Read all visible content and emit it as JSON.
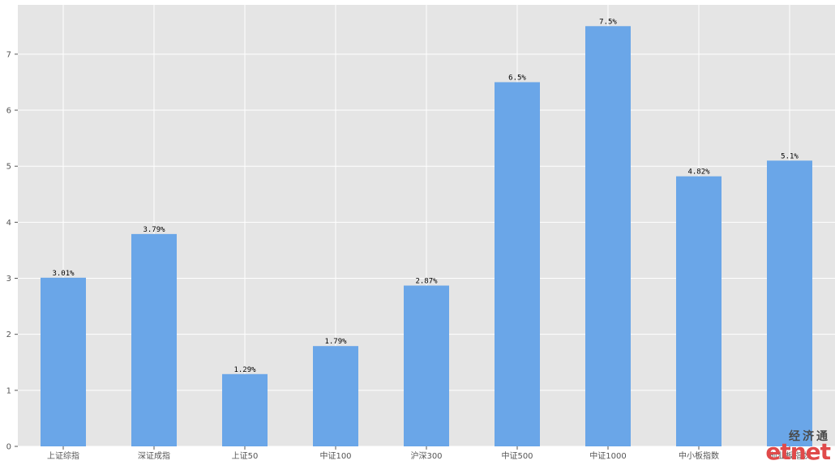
{
  "chart_data": {
    "type": "bar",
    "categories": [
      "上证综指",
      "深证成指",
      "上证50",
      "中证100",
      "沪深300",
      "中证500",
      "中证1000",
      "中小板指数",
      "创业板指数"
    ],
    "values": [
      3.01,
      3.79,
      1.29,
      1.79,
      2.87,
      6.5,
      7.5,
      4.82,
      5.1
    ],
    "data_labels": [
      "3.01%",
      "3.79%",
      "1.29%",
      "1.79%",
      "2.87%",
      "6.5%",
      "7.5%",
      "4.82%",
      "5.1%"
    ],
    "yticks": [
      0,
      1,
      2,
      3,
      4,
      5,
      6,
      7
    ],
    "ylim": [
      0,
      7.88
    ],
    "grid": true,
    "title": "",
    "xlabel": "",
    "ylabel": "",
    "bar_color": "#6aa6e8",
    "background_color": "#e5e5e5",
    "grid_color": "#ffffff"
  },
  "watermark": {
    "chinese": "经济通",
    "english": "etnet"
  }
}
